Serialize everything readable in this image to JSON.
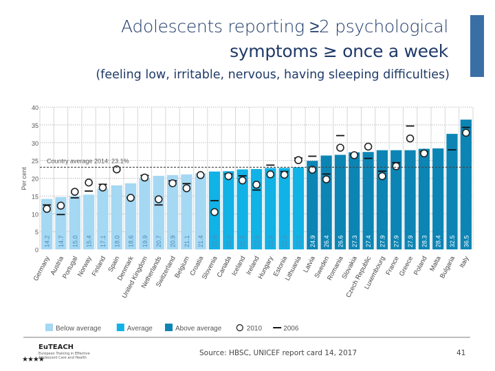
{
  "title_line1": "Adolescents reporting ≥2 psychological",
  "title_line2": "symptoms ≥ once a week",
  "subtitle": "(feeling low, irritable, nervous, having sleeping difficulties)",
  "source": "Source: HBSC, UNICEF report card 14, 2017",
  "page_number": "41",
  "logo": {
    "name": "EuTEACH",
    "tagline": "European Training in Effective Adolescent Care and Health"
  },
  "colors": {
    "below": "#a5d8f3",
    "average": "#11b2e6",
    "above": "#0c85b5",
    "accent": "#3a6fa6"
  },
  "chart_data": {
    "type": "bar",
    "ylabel": "Per cent",
    "ylim": [
      0,
      40
    ],
    "yticks": [
      0,
      5,
      10,
      15,
      20,
      25,
      30,
      35,
      40
    ],
    "grid": true,
    "reference_line": {
      "value": 23.1,
      "label": "Country average 2014: 23.1%"
    },
    "legend_position": "bottom",
    "legend": [
      {
        "key": "below",
        "label": "Below average"
      },
      {
        "key": "average",
        "label": "Average"
      },
      {
        "key": "above",
        "label": "Above average"
      },
      {
        "key": "2010",
        "label": "2010"
      },
      {
        "key": "2006",
        "label": "2006"
      }
    ],
    "categories": [
      "Germany",
      "Austria",
      "Portugal",
      "Norway",
      "Finland",
      "Spain",
      "Denmark",
      "United Kingdom",
      "Netherlands",
      "Switzerland",
      "Belgium",
      "Croatia",
      "Slovenia",
      "Canada",
      "Iceland",
      "Ireland",
      "Hungary",
      "Estonia",
      "Lithuania",
      "Latvia",
      "Sweden",
      "Romania",
      "Slovakia",
      "Czech Republic",
      "Luxembourg",
      "France",
      "Greece",
      "Poland",
      "Malta",
      "Bulgaria",
      "Italy"
    ],
    "groups": [
      "below",
      "below",
      "below",
      "below",
      "below",
      "below",
      "below",
      "below",
      "below",
      "below",
      "below",
      "below",
      "average",
      "average",
      "average",
      "average",
      "average",
      "average",
      "average",
      "above",
      "above",
      "above",
      "above",
      "above",
      "above",
      "above",
      "above",
      "above",
      "above",
      "above",
      "above"
    ],
    "values_2014": [
      14.2,
      14.7,
      15.0,
      15.4,
      17.1,
      18.0,
      18.6,
      19.9,
      20.7,
      20.9,
      21.1,
      21.4,
      21.9,
      22.0,
      22.5,
      22.6,
      22.9,
      22.9,
      23.1,
      24.9,
      26.4,
      26.6,
      27.3,
      27.4,
      27.9,
      27.9,
      27.9,
      28.3,
      28.4,
      32.5,
      36.5
    ],
    "values_2010": [
      11.4,
      12.3,
      16.2,
      18.8,
      17.4,
      22.5,
      14.5,
      20.2,
      14.1,
      18.6,
      17.2,
      20.9,
      10.5,
      20.6,
      19.4,
      18.2,
      21.1,
      21.0,
      25.1,
      22.4,
      19.7,
      28.6,
      26.5,
      28.9,
      20.6,
      23.4,
      31.2,
      27.0,
      null,
      null,
      32.8
    ],
    "values_2006": [
      12.5,
      9.8,
      14.5,
      16.4,
      18.3,
      null,
      14.6,
      20.8,
      12.5,
      19.3,
      18.5,
      null,
      13.7,
      21.2,
      20.7,
      16.7,
      23.7,
      21.9,
      25.7,
      26.2,
      21.2,
      32.0,
      26.7,
      25.6,
      22.0,
      24.4,
      34.7,
      27.5,
      null,
      28.0,
      34.3
    ]
  }
}
